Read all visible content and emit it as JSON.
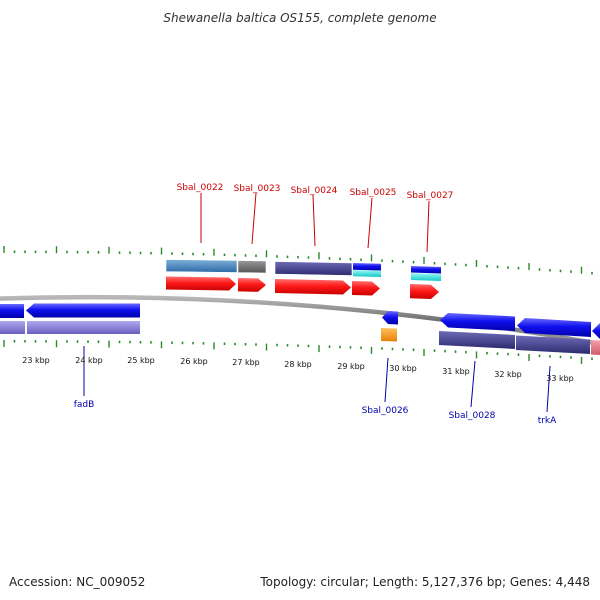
{
  "title": "Shewanella baltica OS155, complete genome",
  "footer": {
    "accession": "Accession: NC_009052",
    "summary": "Topology: circular; Length: 5,127,376 bp; Genes: 4,448"
  },
  "ruler_labels": [
    "23 kbp",
    "24 kbp",
    "25 kbp",
    "26 kbp",
    "27 kbp",
    "28 kbp",
    "29 kbp",
    "30 kbp",
    "31 kbp",
    "32 kbp",
    "33 kbp"
  ],
  "top_gene_labels": [
    "Sbal_0022",
    "Sbal_0023",
    "Sbal_0024",
    "Sbal_0025",
    "Sbal_0027"
  ],
  "bottom_gene_labels": [
    "fadB",
    "Sbal_0026",
    "Sbal_0028",
    "trkA"
  ],
  "colors": {
    "forward_cds": "#ff1a1a",
    "reverse_cds": "#1010ee",
    "tick": "#2a8a2a",
    "backbone": "#888888",
    "label_forward": "#cc0000",
    "label_reverse": "#0000aa",
    "cog_blue": "#3a79b5",
    "cog_gray": "#666666",
    "cog_purple": "#3b3880",
    "cog_cyan": "#22dddd",
    "cog_lavender": "#7e72c9",
    "cog_orange": "#ff9900",
    "cog_pink": "#e07080"
  }
}
